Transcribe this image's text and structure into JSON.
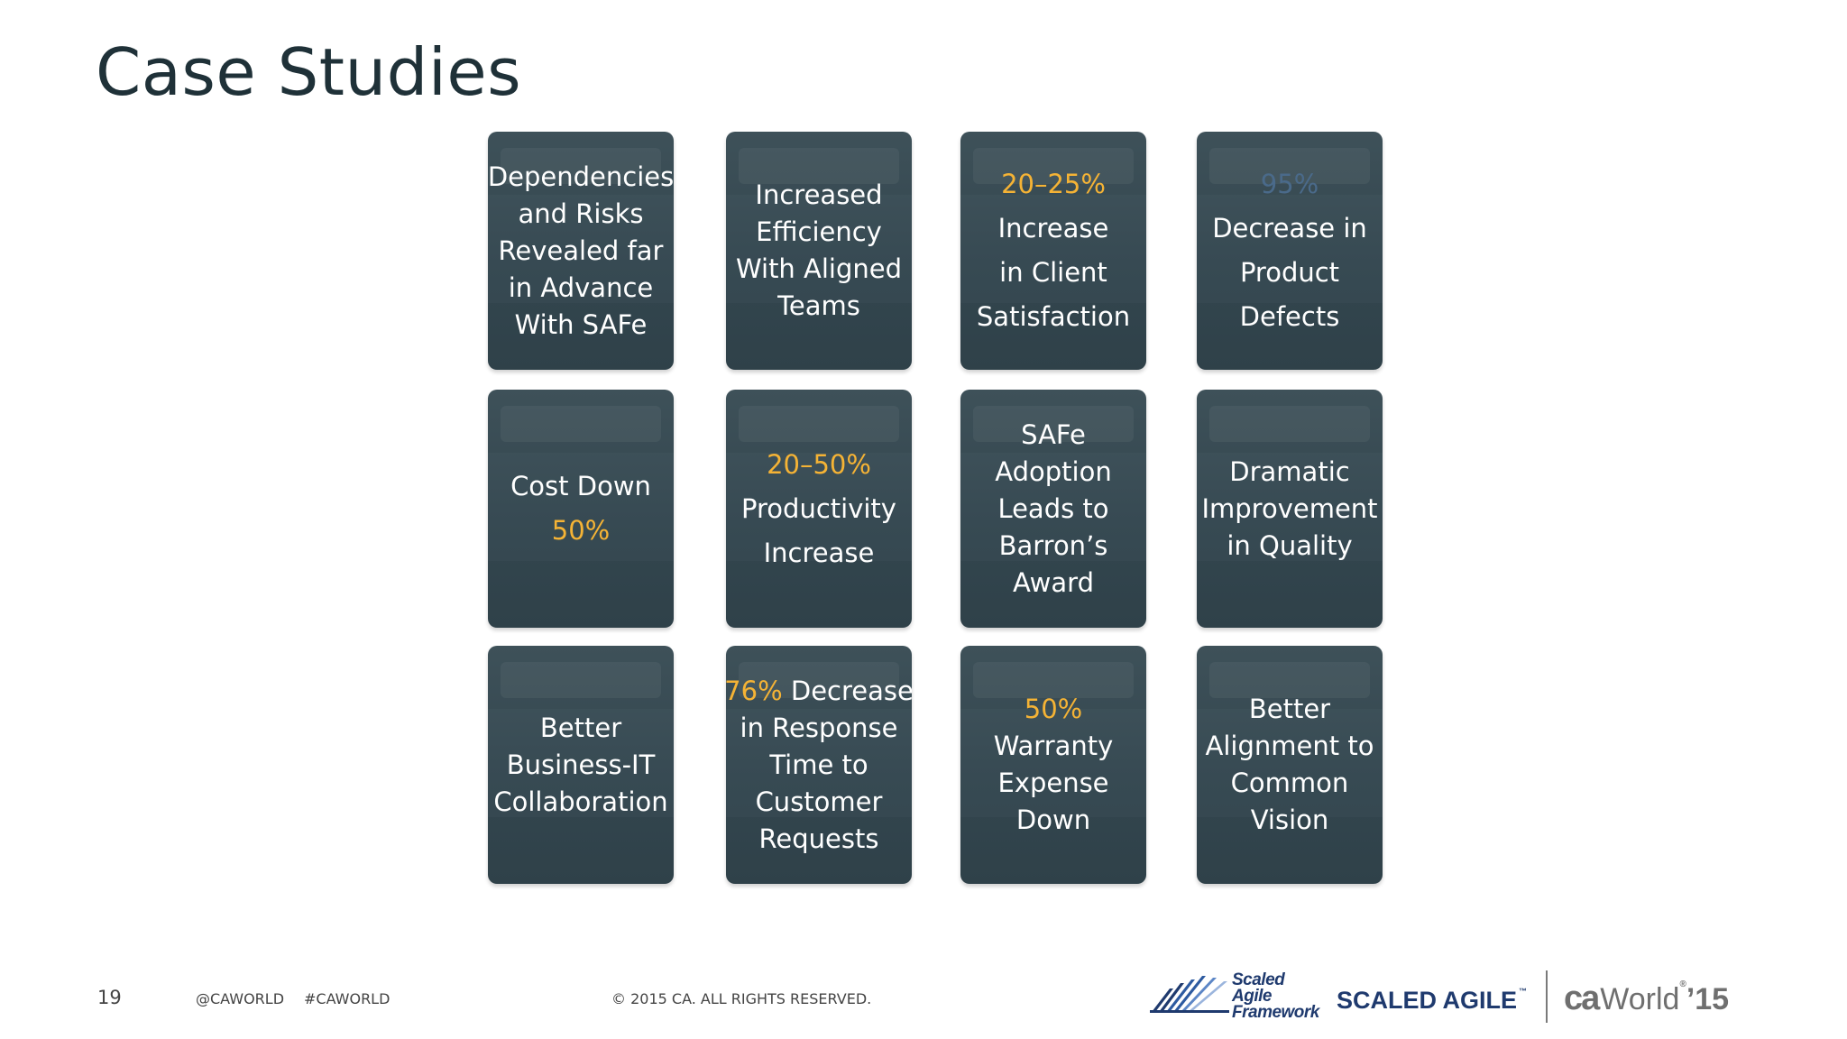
{
  "slide": {
    "title": "Case Studies"
  },
  "cards": [
    {
      "lines": [
        {
          "parts": [
            {
              "t": "Dependencies",
              "hl": false
            }
          ]
        },
        {
          "parts": [
            {
              "t": "and Risks",
              "hl": false
            }
          ]
        },
        {
          "parts": [
            {
              "t": "Revealed far",
              "hl": false
            }
          ]
        },
        {
          "parts": [
            {
              "t": "in Advance",
              "hl": false
            }
          ]
        },
        {
          "parts": [
            {
              "t": "With SAFe",
              "hl": false
            }
          ]
        }
      ]
    },
    {
      "lines": [
        {
          "parts": [
            {
              "t": "Increased",
              "hl": false
            }
          ]
        },
        {
          "parts": [
            {
              "t": "Efficiency",
              "hl": false
            }
          ]
        },
        {
          "parts": [
            {
              "t": "With Aligned",
              "hl": false
            }
          ]
        },
        {
          "parts": [
            {
              "t": "Teams",
              "hl": false
            }
          ]
        }
      ]
    },
    {
      "loose": true,
      "lines": [
        {
          "parts": [
            {
              "t": "20–25%",
              "hl": true
            }
          ]
        },
        {
          "parts": [
            {
              "t": "Increase",
              "hl": false
            }
          ]
        },
        {
          "parts": [
            {
              "t": "in Client",
              "hl": false
            }
          ]
        },
        {
          "parts": [
            {
              "t": "Satisfaction",
              "hl": false
            }
          ]
        }
      ]
    },
    {
      "loose": true,
      "lines": [
        {
          "parts": [
            {
              "t": "95%",
              "hl": true,
              "faint": true
            }
          ]
        },
        {
          "parts": [
            {
              "t": "Decrease in",
              "hl": false
            }
          ]
        },
        {
          "parts": [
            {
              "t": "Product",
              "hl": false
            }
          ]
        },
        {
          "parts": [
            {
              "t": "Defects",
              "hl": false
            }
          ]
        }
      ]
    },
    {
      "loose": true,
      "lines": [
        {
          "parts": [
            {
              "t": "Cost Down",
              "hl": false
            }
          ]
        },
        {
          "parts": [
            {
              "t": "50%",
              "hl": true
            }
          ]
        }
      ]
    },
    {
      "loose": true,
      "lines": [
        {
          "parts": [
            {
              "t": "20–50%",
              "hl": true
            }
          ]
        },
        {
          "parts": [
            {
              "t": "Productivity",
              "hl": false
            }
          ]
        },
        {
          "parts": [
            {
              "t": "Increase",
              "hl": false
            }
          ]
        }
      ]
    },
    {
      "lines": [
        {
          "parts": [
            {
              "t": "SAFe",
              "hl": false
            }
          ]
        },
        {
          "parts": [
            {
              "t": "Adoption",
              "hl": false
            }
          ]
        },
        {
          "parts": [
            {
              "t": "Leads to",
              "hl": false
            }
          ]
        },
        {
          "parts": [
            {
              "t": "Barron’s",
              "hl": false
            }
          ]
        },
        {
          "parts": [
            {
              "t": "Award",
              "hl": false
            }
          ]
        }
      ]
    },
    {
      "lines": [
        {
          "parts": [
            {
              "t": "Dramatic",
              "hl": false
            }
          ]
        },
        {
          "parts": [
            {
              "t": "Improvement",
              "hl": false
            }
          ]
        },
        {
          "parts": [
            {
              "t": "in Quality",
              "hl": false
            }
          ]
        }
      ]
    },
    {
      "lines": [
        {
          "parts": [
            {
              "t": "Better",
              "hl": false
            }
          ]
        },
        {
          "parts": [
            {
              "t": "Business-IT",
              "hl": false
            }
          ]
        },
        {
          "parts": [
            {
              "t": "Collaboration",
              "hl": false
            }
          ]
        }
      ]
    },
    {
      "lines": [
        {
          "parts": [
            {
              "t": "76%",
              "hl": true
            },
            {
              "t": " Decrease",
              "hl": false
            }
          ]
        },
        {
          "parts": [
            {
              "t": "in Response",
              "hl": false
            }
          ]
        },
        {
          "parts": [
            {
              "t": "Time to",
              "hl": false
            }
          ]
        },
        {
          "parts": [
            {
              "t": "Customer",
              "hl": false
            }
          ]
        },
        {
          "parts": [
            {
              "t": "Requests",
              "hl": false
            }
          ]
        }
      ]
    },
    {
      "lines": [
        {
          "parts": [
            {
              "t": "50%",
              "hl": true
            }
          ]
        },
        {
          "parts": [
            {
              "t": "Warranty",
              "hl": false
            }
          ]
        },
        {
          "parts": [
            {
              "t": "Expense",
              "hl": false
            }
          ]
        },
        {
          "parts": [
            {
              "t": "Down",
              "hl": false
            }
          ]
        }
      ]
    },
    {
      "lines": [
        {
          "parts": [
            {
              "t": "Better",
              "hl": false
            }
          ]
        },
        {
          "parts": [
            {
              "t": "Alignment to",
              "hl": false
            }
          ]
        },
        {
          "parts": [
            {
              "t": "Common",
              "hl": false
            }
          ]
        },
        {
          "parts": [
            {
              "t": "Vision",
              "hl": false
            }
          ]
        }
      ]
    }
  ],
  "footer": {
    "page_number": "19",
    "handle": "@CAWORLD",
    "hashtag": "#CAWORLD",
    "copyright": "© 2015 CA. ALL RIGHTS RESERVED.",
    "saf_logo_line1": "Scaled Agile",
    "saf_logo_line2": "Framework",
    "scaled_agile_logo": "SCALED AGILE",
    "ca_logo_ca": "ca",
    "ca_logo_world": "World",
    "ca_logo_year": "’15"
  },
  "colors": {
    "title": "#1f3138",
    "card_bg": "#35484f",
    "highlight": "#f5b335",
    "card_text": "#ffffff"
  }
}
